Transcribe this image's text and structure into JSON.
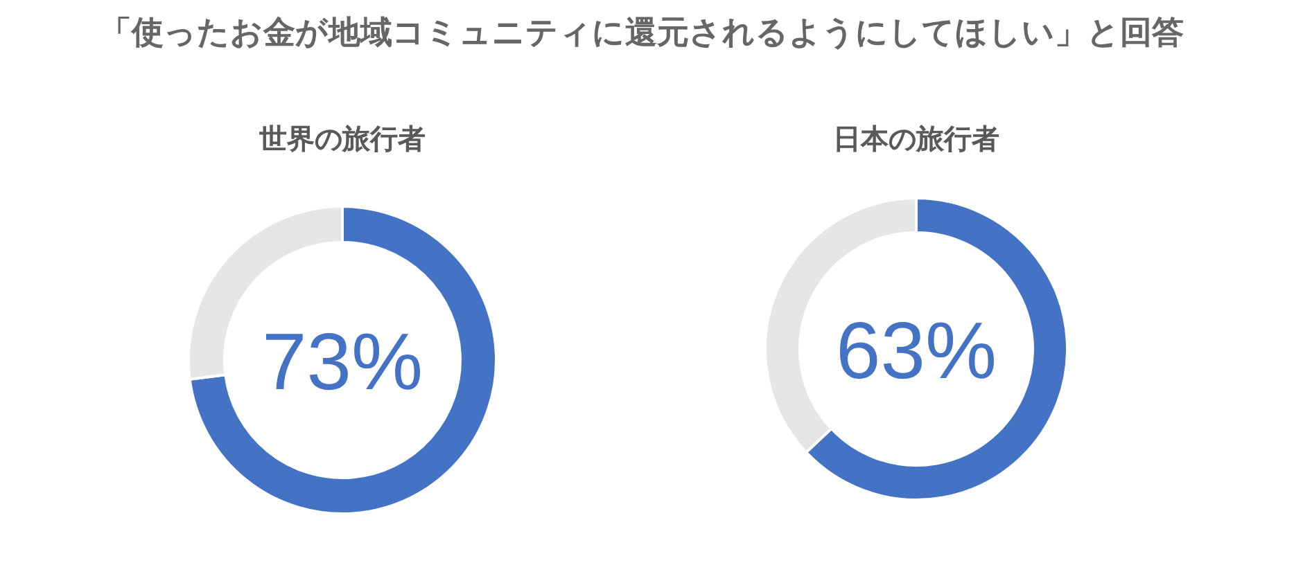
{
  "chart_data": [
    {
      "type": "other",
      "title": "「使ったお金が地域コミュニティに還元されるようにしてほしい」と回答"
    },
    {
      "type": "donut",
      "title": "世界の旅行者",
      "categories": [
        null,
        null
      ],
      "values": [
        73,
        27
      ],
      "colors": [
        "#4472c4",
        "#e7e6e6"
      ],
      "value_labels": [
        "73%",
        null
      ]
    },
    {
      "type": "donut",
      "title": "日本の旅行者",
      "categories": [
        null,
        null
      ],
      "values": [
        63,
        37
      ],
      "colors": [
        "#4472c4",
        "#e7e6e6"
      ],
      "value_labels": [
        "63%",
        null
      ]
    }
  ]
}
